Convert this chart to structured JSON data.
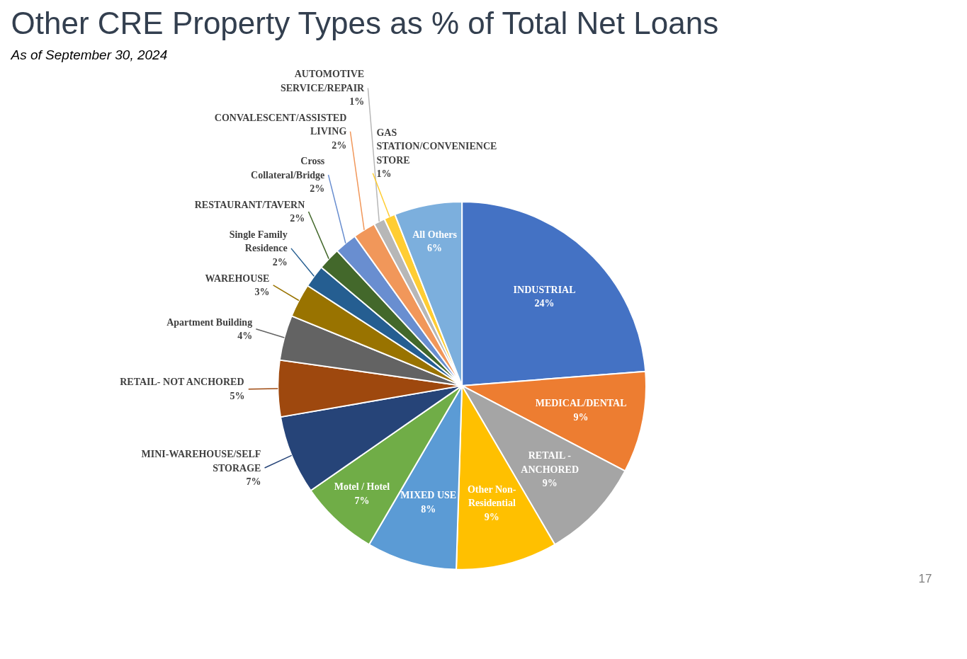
{
  "chart_data": {
    "type": "pie",
    "title": "Other CRE Property Types as % of Total Net Loans",
    "subtitle": "As of September 30, 2024",
    "categories": [
      "INDUSTRIAL",
      "MEDICAL/DENTAL",
      "RETAIL - ANCHORED",
      "Other Non-Residential",
      "MIXED USE",
      "Motel / Hotel",
      "MINI-WAREHOUSE/SELF STORAGE",
      "RETAIL- NOT ANCHORED",
      "Apartment Building",
      "WAREHOUSE",
      "Single Family Residence",
      "RESTAURANT/TAVERN",
      "Cross Collateral/Bridge",
      "CONVALESCENT/ASSISTED LIVING",
      "AUTOMOTIVE SERVICE/REPAIR",
      "GAS STATION/CONVENIENCE STORE",
      "All Others"
    ],
    "values": [
      24,
      9,
      9,
      9,
      8,
      7,
      7,
      5,
      4,
      3,
      2,
      2,
      2,
      2,
      1,
      1,
      6
    ],
    "value_labels": [
      "24%",
      "9%",
      "9%",
      "9%",
      "8%",
      "7%",
      "7%",
      "5%",
      "4%",
      "3%",
      "2%",
      "2%",
      "2%",
      "2%",
      "1%",
      "1%",
      "6%"
    ],
    "colors": [
      "#4472c4",
      "#ed7d31",
      "#a5a5a5",
      "#ffc000",
      "#5b9bd5",
      "#70ad47",
      "#264478",
      "#9e480e",
      "#636363",
      "#997300",
      "#255e91",
      "#43682b",
      "#698ed0",
      "#f1975a",
      "#b7b7b7",
      "#ffcd33",
      "#7cafdd"
    ],
    "annotations": [
      "17"
    ]
  }
}
